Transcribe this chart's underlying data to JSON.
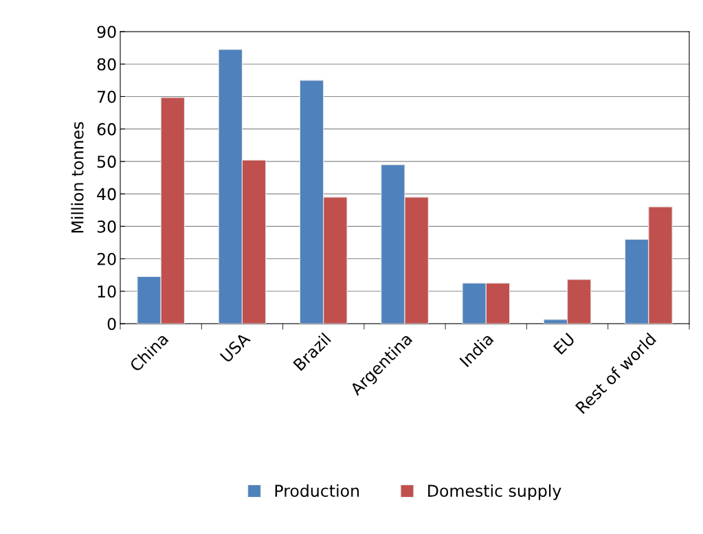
{
  "chart_data": {
    "type": "bar",
    "ylabel": "Million tonnes",
    "categories": [
      "China",
      "USA",
      "Brazil",
      "Argentina",
      "India",
      "EU",
      "Rest of world"
    ],
    "series": [
      {
        "name": "Production",
        "color": "#4f81bd",
        "values": [
          14.5,
          84.5,
          75,
          49,
          12.5,
          1.3,
          26
        ]
      },
      {
        "name": "Domestic supply",
        "color": "#c0504d",
        "values": [
          69.7,
          50.4,
          39,
          39,
          12.5,
          13.6,
          36
        ]
      }
    ],
    "ylim": [
      0,
      90
    ],
    "yticks": [
      0,
      10,
      20,
      30,
      40,
      50,
      60,
      70,
      80,
      90
    ],
    "grid": "y",
    "legend": "bottom"
  }
}
